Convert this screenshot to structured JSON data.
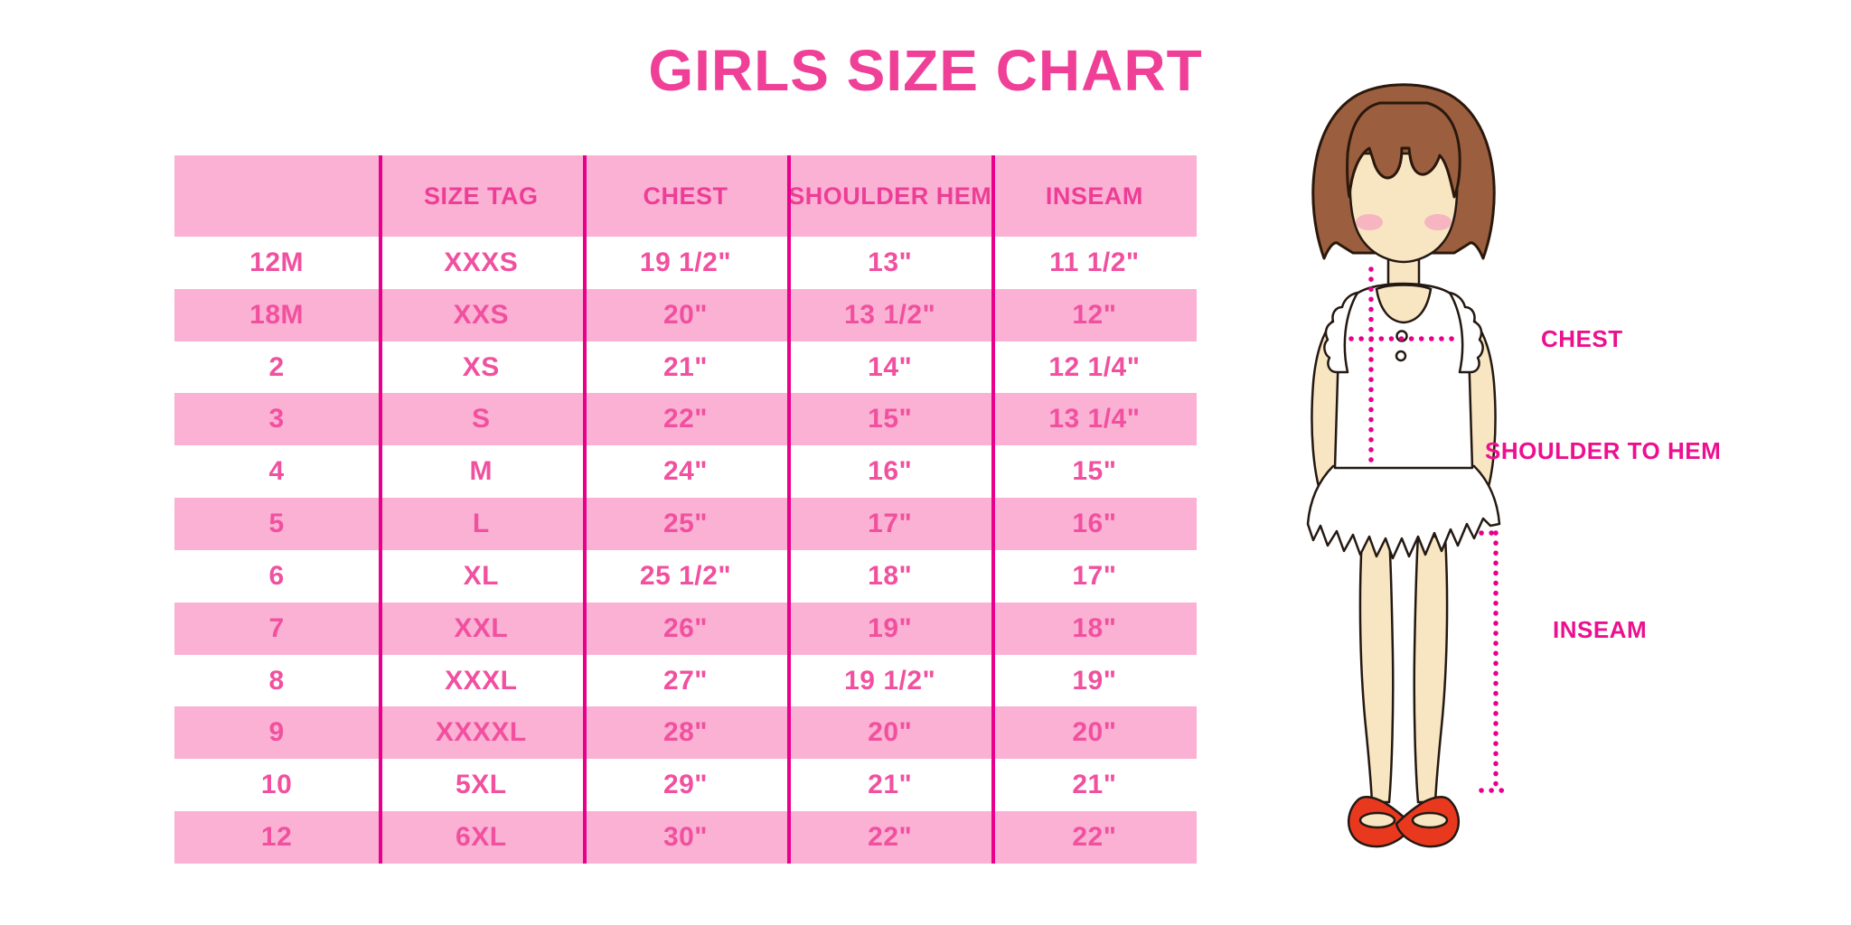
{
  "title": "GIRLS SIZE CHART",
  "table": {
    "headers": [
      "",
      "SIZE TAG",
      "CHEST",
      "SHOULDER HEM",
      "INSEAM"
    ],
    "rows": [
      [
        "12M",
        "XXXS",
        "19 1/2\"",
        "13\"",
        "11 1/2\""
      ],
      [
        "18M",
        "XXS",
        "20\"",
        "13 1/2\"",
        "12\""
      ],
      [
        "2",
        "XS",
        "21\"",
        "14\"",
        "12 1/4\""
      ],
      [
        "3",
        "S",
        "22\"",
        "15\"",
        "13 1/4\""
      ],
      [
        "4",
        "M",
        "24\"",
        "16\"",
        "15\""
      ],
      [
        "5",
        "L",
        "25\"",
        "17\"",
        "16\""
      ],
      [
        "6",
        "XL",
        "25 1/2\"",
        "18\"",
        "17\""
      ],
      [
        "7",
        "XXL",
        "26\"",
        "19\"",
        "18\""
      ],
      [
        "8",
        "XXXL",
        "27\"",
        "19 1/2\"",
        "19\""
      ],
      [
        "9",
        "XXXXL",
        "28\"",
        "20\"",
        "20\""
      ],
      [
        "10",
        "5XL",
        "29\"",
        "21\"",
        "21\""
      ],
      [
        "12",
        "6XL",
        "30\"",
        "22\"",
        "22\""
      ]
    ]
  },
  "diagram": {
    "labels": {
      "chest": "CHEST",
      "shoulder_to_hem": "SHOULDER TO HEM",
      "inseam": "INSEAM"
    }
  },
  "colors": {
    "accent_pink": "#FBB1D4",
    "magenta": "#E8008C",
    "text_pink": "#F1509F",
    "header_pink": "#EE3D96",
    "title_pink": "#F03F97",
    "label_magenta": "#EC1090",
    "hair_brown": "#9B5F3F",
    "skin": "#F8E6C2",
    "shoe_red": "#E8391F"
  },
  "chart_data": {
    "type": "table",
    "title": "GIRLS SIZE CHART",
    "columns": [
      "",
      "SIZE TAG",
      "CHEST",
      "SHOULDER HEM",
      "INSEAM"
    ],
    "rows": [
      [
        "12M",
        "XXXS",
        "19 1/2\"",
        "13\"",
        "11 1/2\""
      ],
      [
        "18M",
        "XXS",
        "20\"",
        "13 1/2\"",
        "12\""
      ],
      [
        "2",
        "XS",
        "21\"",
        "14\"",
        "12 1/4\""
      ],
      [
        "3",
        "S",
        "22\"",
        "15\"",
        "13 1/4\""
      ],
      [
        "4",
        "M",
        "24\"",
        "16\"",
        "15\""
      ],
      [
        "5",
        "L",
        "25\"",
        "17\"",
        "16\""
      ],
      [
        "6",
        "XL",
        "25 1/2\"",
        "18\"",
        "17\""
      ],
      [
        "7",
        "XXL",
        "26\"",
        "19\"",
        "18\""
      ],
      [
        "8",
        "XXXL",
        "27\"",
        "19 1/2\"",
        "19\""
      ],
      [
        "9",
        "XXXXL",
        "28\"",
        "20\"",
        "20\""
      ],
      [
        "10",
        "5XL",
        "29\"",
        "21\"",
        "21\""
      ],
      [
        "12",
        "6XL",
        "30\"",
        "22\"",
        "22\""
      ]
    ],
    "annotations": [
      "CHEST",
      "SHOULDER TO HEM",
      "INSEAM"
    ],
    "legend_position": "none",
    "grid": false
  }
}
